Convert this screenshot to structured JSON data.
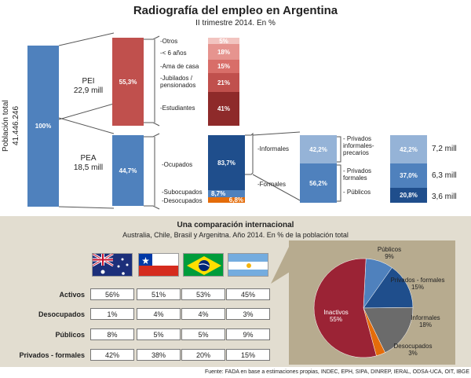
{
  "header": {
    "title": "Radiografía del empleo en Argentina",
    "subtitle": "II trimestre 2014. En %"
  },
  "colors": {
    "pei_dark": "#c0504d",
    "pea_blue": "#4f81bd",
    "pie_red": "#9b2335",
    "pie_blue": "#1f4e8c",
    "pie_gray": "#6b6b6b",
    "pie_orange": "#e46c0a",
    "panel_bg": "#e2ddd0",
    "pie_panel_bg": "#b7ab8f"
  },
  "chart_data": [
    {
      "type": "bar",
      "title": "Radiografía del empleo en Argentina",
      "subtitle": "II trimestre 2014. En %",
      "poblacion_total": {
        "label": "Población total",
        "value": "41.446.246",
        "pct": "100%"
      },
      "groups": [
        {
          "name": "PEI",
          "size": "22,9 mill",
          "pct": "55,3%"
        },
        {
          "name": "PEA",
          "size": "18,5 mill",
          "pct": "44,7%"
        }
      ],
      "pei_breakdown": [
        {
          "label": "-Otros",
          "value": "5%"
        },
        {
          "label": "-< 6 años",
          "value": "18%"
        },
        {
          "label": "-Ama de casa",
          "value": "15%"
        },
        {
          "label": "-Jubilados / pensionados",
          "value": "21%"
        },
        {
          "label": "-Estudiantes",
          "value": "41%"
        }
      ],
      "pea_breakdown": [
        {
          "label": "-Ocupados",
          "value": "83,7%"
        },
        {
          "label": "-Subocupados",
          "value": "8,7%"
        },
        {
          "label": "-Desocupados",
          "value": "6,8%"
        }
      ],
      "ocupados_breakdown": [
        {
          "label": "-Informales",
          "value": "42,2%"
        },
        {
          "label": "-Formales",
          "value": "56,2%"
        }
      ],
      "sector_breakdown": [
        {
          "label": "- Privados informales-precarios",
          "value": "42,2%",
          "size": "7,2 mill"
        },
        {
          "label": "- Privados formales",
          "value": "37,0%",
          "size": "6,3 mill"
        },
        {
          "label": "- Públicos",
          "value": "20,8%",
          "size": "3,6 mill"
        }
      ]
    },
    {
      "type": "table",
      "title": "Una comparación internacional",
      "subtitle": "Australia, Chile, Brasil y Argenitna. Año 2014. En % de la población total",
      "countries": [
        "Australia",
        "Chile",
        "Brasil",
        "Argentina"
      ],
      "rows": [
        {
          "label": "Activos",
          "values": [
            "56%",
            "51%",
            "53%",
            "45%"
          ]
        },
        {
          "label": "Desocupados",
          "values": [
            "1%",
            "4%",
            "4%",
            "3%"
          ]
        },
        {
          "label": "Públicos",
          "values": [
            "8%",
            "5%",
            "5%",
            "9%"
          ]
        },
        {
          "label": "Privados - formales",
          "values": [
            "42%",
            "38%",
            "20%",
            "15%"
          ]
        }
      ]
    },
    {
      "type": "pie",
      "slices": [
        {
          "label": "Públicos",
          "value": 9,
          "text": "9%"
        },
        {
          "label": "Privados - formales",
          "value": 15,
          "text": "15%"
        },
        {
          "label": "Informales",
          "value": 18,
          "text": "18%"
        },
        {
          "label": "Desocupados",
          "value": 3,
          "text": "3%"
        },
        {
          "label": "Inactivos",
          "value": 55,
          "text": "55%"
        }
      ]
    }
  ],
  "source": "Fuente: FADA en base a estimaciones propias, INDEC, EPH, SIPA, DINREP, IERAL, ODSA-UCA, OIT, IBGE"
}
